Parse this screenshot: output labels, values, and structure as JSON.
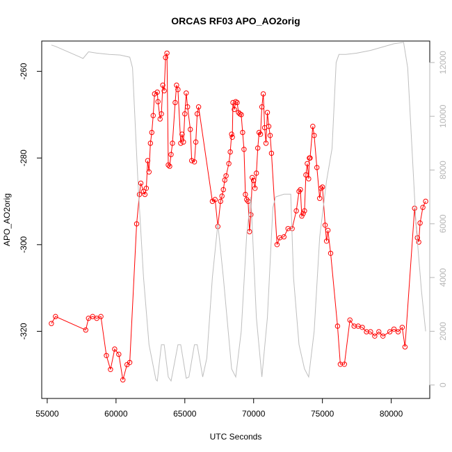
{
  "chart_data": {
    "type": "line",
    "title": "ORCAS RF03 APO_AO2orig",
    "xlabel": "UTC Seconds",
    "ylabel": "APO_AO2orig",
    "xlim": [
      54600,
      82800
    ],
    "ylim": [
      -335.5,
      -253
    ],
    "y2lim": [
      -500,
      12800
    ],
    "x_ticks": [
      55000,
      60000,
      65000,
      70000,
      75000,
      80000
    ],
    "x_tick_labels": [
      "55000",
      "60000",
      "65000",
      "70000",
      "75000",
      "80000"
    ],
    "y_ticks": [
      -260,
      -280,
      -300,
      -320
    ],
    "y_tick_labels": [
      "-260",
      "-280",
      "-300",
      "-320"
    ],
    "y2_ticks": [
      0,
      2000,
      4000,
      6000,
      8000,
      10000,
      12000
    ],
    "y2_tick_labels": [
      "0",
      "2000",
      "4000",
      "6000",
      "8000",
      "10000",
      "12000"
    ],
    "grid": false,
    "series": [
      {
        "color": "#ff0000",
        "axis": "left",
        "style": "line+open-circles",
        "points": [
          [
            55300,
            -318.2
          ],
          [
            55600,
            -316.6
          ],
          [
            57800,
            -319.7
          ],
          [
            58000,
            -317.0
          ],
          [
            58300,
            -316.6
          ],
          [
            58600,
            -317.0
          ],
          [
            58900,
            -316.6
          ],
          [
            59300,
            -325.6
          ],
          [
            59600,
            -328.8
          ],
          [
            59900,
            -324.1
          ],
          [
            60200,
            -325.3
          ],
          [
            60500,
            -331.2
          ],
          [
            60800,
            -327.7
          ],
          [
            61000,
            -327.2
          ],
          [
            61500,
            -295.2
          ],
          [
            61700,
            -288.4
          ],
          [
            61800,
            -285.8
          ],
          [
            62000,
            -287.7
          ],
          [
            62100,
            -288.4
          ],
          [
            62200,
            -287.0
          ],
          [
            62300,
            -280.6
          ],
          [
            62400,
            -283.2
          ],
          [
            62500,
            -276.6
          ],
          [
            62600,
            -274.1
          ],
          [
            62700,
            -270.2
          ],
          [
            62800,
            -265.2
          ],
          [
            63000,
            -264.8
          ],
          [
            63050,
            -267.0
          ],
          [
            63200,
            -271.0
          ],
          [
            63300,
            -269.8
          ],
          [
            63400,
            -263.2
          ],
          [
            63500,
            -264.5
          ],
          [
            63600,
            -256.8
          ],
          [
            63700,
            -255.8
          ],
          [
            63800,
            -281.6
          ],
          [
            63900,
            -281.9
          ],
          [
            64000,
            -279.2
          ],
          [
            64100,
            -276.6
          ],
          [
            64300,
            -267.2
          ],
          [
            64400,
            -263.2
          ],
          [
            64500,
            -264.2
          ],
          [
            64700,
            -276.6
          ],
          [
            64800,
            -274.5
          ],
          [
            64900,
            -276.3
          ],
          [
            65000,
            -269.8
          ],
          [
            65100,
            -265.0
          ],
          [
            65200,
            -268.2
          ],
          [
            65400,
            -273.4
          ],
          [
            65500,
            -280.6
          ],
          [
            65700,
            -280.9
          ],
          [
            65800,
            -276.3
          ],
          [
            65900,
            -269.8
          ],
          [
            66000,
            -268.2
          ],
          [
            67000,
            -290.0
          ],
          [
            67200,
            -289.6
          ],
          [
            67400,
            -295.8
          ],
          [
            67600,
            -290.0
          ],
          [
            67700,
            -288.8
          ],
          [
            67800,
            -287.3
          ],
          [
            67900,
            -285.1
          ],
          [
            68000,
            -284.1
          ],
          [
            68200,
            -281.3
          ],
          [
            68300,
            -278.6
          ],
          [
            68400,
            -274.5
          ],
          [
            68450,
            -275.2
          ],
          [
            68500,
            -267.2
          ],
          [
            68600,
            -268.8
          ],
          [
            68700,
            -267.0
          ],
          [
            68800,
            -267.2
          ],
          [
            68900,
            -269.5
          ],
          [
            69000,
            -269.8
          ],
          [
            69100,
            -270.0
          ],
          [
            69200,
            -274.1
          ],
          [
            69300,
            -278.0
          ],
          [
            69400,
            -288.4
          ],
          [
            69500,
            -289.6
          ],
          [
            69600,
            -290.0
          ],
          [
            69700,
            -297.0
          ],
          [
            69800,
            -293.1
          ],
          [
            69900,
            -284.5
          ],
          [
            70000,
            -285.2
          ],
          [
            70100,
            -287.0
          ],
          [
            70200,
            -283.5
          ],
          [
            70300,
            -277.7
          ],
          [
            70400,
            -274.1
          ],
          [
            70500,
            -274.5
          ],
          [
            70600,
            -268.2
          ],
          [
            70700,
            -265.2
          ],
          [
            70800,
            -273.0
          ],
          [
            70900,
            -276.6
          ],
          [
            71000,
            -269.5
          ],
          [
            71100,
            -272.7
          ],
          [
            71200,
            -274.8
          ],
          [
            71300,
            -278.9
          ],
          [
            71700,
            -300.0
          ],
          [
            71900,
            -298.4
          ],
          [
            72200,
            -298.2
          ],
          [
            72500,
            -296.3
          ],
          [
            72800,
            -296.3
          ],
          [
            73100,
            -292.2
          ],
          [
            73300,
            -287.7
          ],
          [
            73400,
            -287.3
          ],
          [
            73500,
            -293.4
          ],
          [
            73600,
            -292.8
          ],
          [
            73700,
            -292.2
          ],
          [
            73800,
            -283.9
          ],
          [
            73900,
            -281.3
          ],
          [
            74000,
            -284.8
          ],
          [
            74050,
            -280.0
          ],
          [
            74100,
            -280.0
          ],
          [
            74300,
            -272.7
          ],
          [
            74400,
            -274.8
          ],
          [
            74600,
            -282.2
          ],
          [
            74800,
            -289.3
          ],
          [
            74900,
            -287.0
          ],
          [
            75000,
            -286.7
          ],
          [
            75200,
            -295.5
          ],
          [
            75300,
            -299.2
          ],
          [
            75400,
            -296.7
          ],
          [
            75600,
            -302.0
          ],
          [
            76100,
            -318.8
          ],
          [
            76300,
            -327.6
          ],
          [
            76600,
            -327.6
          ],
          [
            77000,
            -317.4
          ],
          [
            77300,
            -318.8
          ],
          [
            77600,
            -318.8
          ],
          [
            77900,
            -319.1
          ],
          [
            78200,
            -320.1
          ],
          [
            78500,
            -320.1
          ],
          [
            78800,
            -321.1
          ],
          [
            79100,
            -320.1
          ],
          [
            79400,
            -321.1
          ],
          [
            79900,
            -320.1
          ],
          [
            80200,
            -319.5
          ],
          [
            80500,
            -320.1
          ],
          [
            80800,
            -319.1
          ],
          [
            81000,
            -323.6
          ],
          [
            81700,
            -291.6
          ],
          [
            81900,
            -298.4
          ],
          [
            82000,
            -299.4
          ],
          [
            82100,
            -295.0
          ],
          [
            82300,
            -291.4
          ],
          [
            82500,
            -290.0
          ]
        ]
      },
      {
        "color": "#bebebe",
        "axis": "right",
        "style": "line",
        "points": [
          [
            55300,
            12650
          ],
          [
            55600,
            12600
          ],
          [
            57400,
            12200
          ],
          [
            57600,
            12150
          ],
          [
            58000,
            12400
          ],
          [
            58600,
            12350
          ],
          [
            59500,
            12300
          ],
          [
            60300,
            12280
          ],
          [
            61000,
            12200
          ],
          [
            61200,
            11800
          ],
          [
            61600,
            7500
          ],
          [
            62000,
            4000
          ],
          [
            62400,
            1500
          ],
          [
            62900,
            200
          ],
          [
            63000,
            150
          ],
          [
            63300,
            1500
          ],
          [
            63500,
            1500
          ],
          [
            63800,
            300
          ],
          [
            64000,
            150
          ],
          [
            64500,
            1500
          ],
          [
            64700,
            1500
          ],
          [
            65100,
            250
          ],
          [
            65300,
            300
          ],
          [
            65700,
            1500
          ],
          [
            65900,
            1500
          ],
          [
            66300,
            300
          ],
          [
            66600,
            1000
          ],
          [
            67000,
            4000
          ],
          [
            67400,
            6000
          ],
          [
            67800,
            4000
          ],
          [
            68400,
            600
          ],
          [
            68700,
            300
          ],
          [
            69100,
            2000
          ],
          [
            69500,
            5600
          ],
          [
            69800,
            7000
          ],
          [
            70200,
            2500
          ],
          [
            70600,
            300
          ],
          [
            71000,
            2500
          ],
          [
            71400,
            6600
          ],
          [
            71600,
            7000
          ],
          [
            72200,
            7100
          ],
          [
            72700,
            7100
          ],
          [
            72900,
            4000
          ],
          [
            73300,
            1500
          ],
          [
            73700,
            600
          ],
          [
            74000,
            300
          ],
          [
            74400,
            2000
          ],
          [
            74800,
            5500
          ],
          [
            75300,
            7600
          ],
          [
            75700,
            8800
          ],
          [
            76000,
            12000
          ],
          [
            76200,
            12300
          ],
          [
            76700,
            12300
          ],
          [
            77500,
            12350
          ],
          [
            78500,
            12450
          ],
          [
            80200,
            12700
          ],
          [
            80900,
            12750
          ],
          [
            81200,
            11800
          ],
          [
            81800,
            6000
          ],
          [
            82200,
            3500
          ],
          [
            82500,
            2000
          ]
        ]
      }
    ]
  }
}
